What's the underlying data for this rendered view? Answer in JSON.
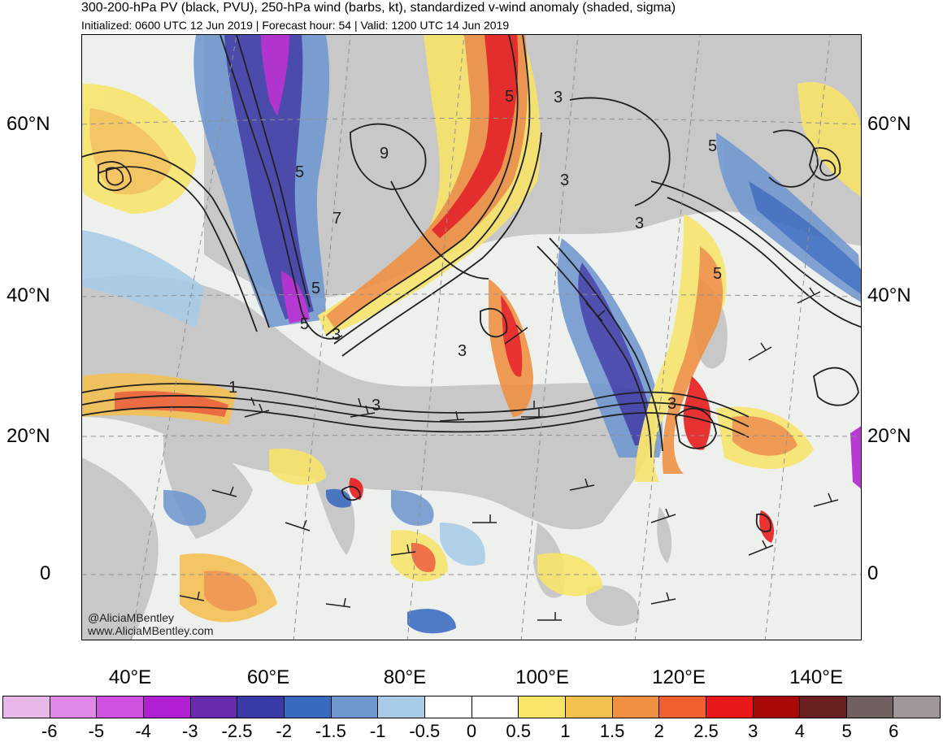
{
  "header": {
    "title": "300-200-hPa PV (black, PVU), 250-hPa wind (barbs, kt), standardized v-wind anomaly (shaded, sigma)",
    "subtitle": "Initialized: 0600 UTC 12 Jun 2019 | Forecast hour: 54 | Valid: 1200 UTC 14 Jun 2019"
  },
  "axes": {
    "lat_labels": [
      "60°N",
      "40°N",
      "20°N",
      "0"
    ],
    "lon_labels": [
      "40°E",
      "60°E",
      "80°E",
      "100°E",
      "120°E",
      "140°E"
    ]
  },
  "credits": {
    "handle": "@AliciaMBentley",
    "website": "www.AliciaMBentley.com"
  },
  "contour_labels": [
    "5",
    "3",
    "7",
    "9",
    "5",
    "3",
    "3",
    "5",
    "3",
    "1",
    "3",
    "3",
    "3",
    "5",
    "5",
    "5"
  ],
  "colorbar": {
    "ticks": [
      "-6",
      "-5",
      "-4",
      "-3",
      "-2.5",
      "-2",
      "-1.5",
      "-1",
      "-0.5",
      "0",
      "0.5",
      "1",
      "1.5",
      "2",
      "2.5",
      "3",
      "4",
      "5",
      "6"
    ],
    "colors": [
      "#e8b8e8",
      "#e088e8",
      "#d050e0",
      "#b020d0",
      "#6a2ab0",
      "#3a3aa8",
      "#3a6ac0",
      "#7098d0",
      "#a8cce8",
      "#ffffff",
      "#ffffff",
      "#f8e468",
      "#f4c050",
      "#f09040",
      "#f06030",
      "#e81818",
      "#a80808",
      "#6a2020",
      "#706060",
      "#a09898"
    ]
  },
  "legend_colors": {
    "land": "#c8c8c8",
    "ocean": "#f4f4f4",
    "contour": "#202020"
  }
}
